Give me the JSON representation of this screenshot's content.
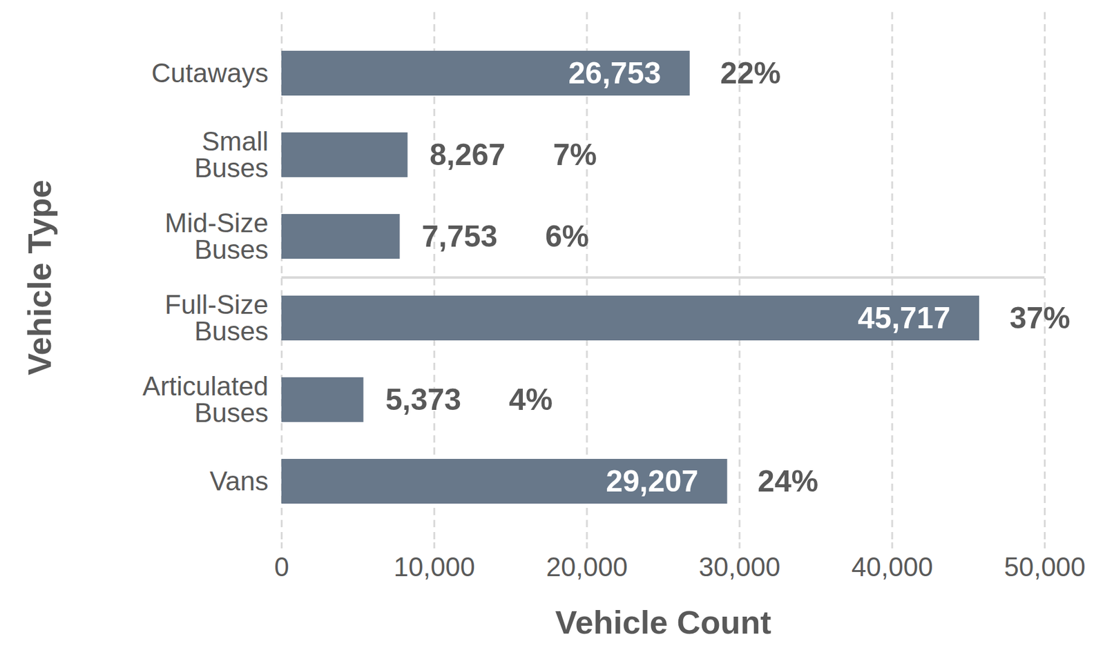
{
  "chart_data": {
    "type": "bar",
    "orientation": "horizontal",
    "categories": [
      "Cutaways",
      "Small Buses",
      "Mid-Size Buses",
      "Full-Size Buses",
      "Articulated Buses",
      "Vans"
    ],
    "values": [
      26753,
      8267,
      7753,
      45717,
      5373,
      29207
    ],
    "value_labels": [
      "26,753",
      "8,267",
      "7,753",
      "45,717",
      "5,373",
      "29,207"
    ],
    "share_labels": [
      "22%",
      "7%",
      "6%",
      "37%",
      "4%",
      "24%"
    ],
    "color": "#68788a",
    "xlabel": "Vehicle Count",
    "ylabel": "Vehicle Type",
    "xlim": [
      0,
      50000
    ],
    "xticks": [
      0,
      {
        "value": 10000,
        "label": "10,000"
      },
      {
        "value": 20000,
        "label": "20,000"
      },
      {
        "value": 30000,
        "label": "30,000"
      },
      {
        "value": 40000,
        "label": "40,000"
      },
      {
        "value": 50000,
        "label": "50,000"
      }
    ],
    "grid": true,
    "data_labels": true
  }
}
